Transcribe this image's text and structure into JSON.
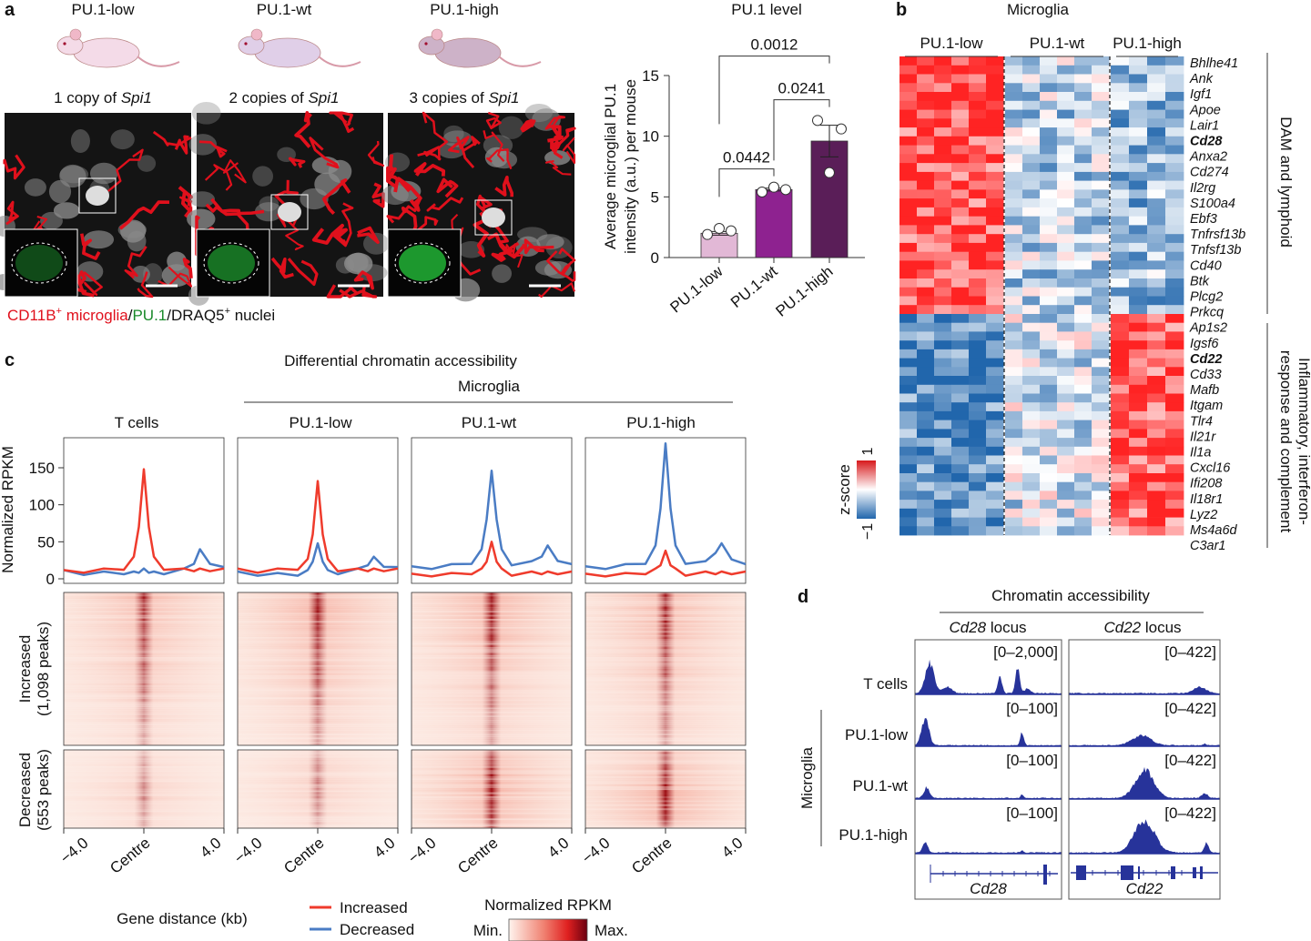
{
  "panel_labels": {
    "a": "a",
    "b": "b",
    "c": "c",
    "d": "d"
  },
  "panel_a": {
    "genotypes": [
      {
        "name": "PU.1-low",
        "copies": "1 copy of ",
        "gene": "Spi1"
      },
      {
        "name": "PU.1-wt",
        "copies": "2 copies of ",
        "gene": "Spi1"
      },
      {
        "name": "PU.1-high",
        "copies": "3 copies of ",
        "gene": "Spi1"
      }
    ],
    "caption": {
      "marker1": "CD11B",
      "sup1": "+",
      "cell1": " microglia",
      "slash1": "/",
      "marker2": "PU.1",
      "slash2": "/DRAQ5",
      "sup2": "+",
      "cell2": " nuclei"
    },
    "colors": {
      "microglia": "#e0101c",
      "pu1": "#1a8a2a",
      "nuclei": "#cfcfcf",
      "mouse_low": "#f4dbe8",
      "mouse_wt": "#e0cfe8",
      "mouse_high": "#cdb2c8"
    }
  },
  "chart_data": [
    {
      "type": "bar",
      "title": "PU.1 level",
      "ylabel_line1": "Average microglial PU.1",
      "ylabel_line2": "intensity (a.u.) per mouse",
      "categories": [
        "PU.1-low",
        "PU.1-wt",
        "PU.1-high"
      ],
      "values": [
        2.0,
        5.6,
        9.6
      ],
      "error_sem": [
        0.15,
        0.12,
        1.3
      ],
      "points": [
        [
          1.9,
          2.4,
          2.2
        ],
        [
          5.4,
          5.8,
          5.6
        ],
        [
          11.3,
          7.0,
          10.6
        ]
      ],
      "colors": [
        "#e2b8d6",
        "#8e2290",
        "#5a1e58"
      ],
      "ylim": [
        0,
        15
      ],
      "yticks": [
        "0",
        "5",
        "10",
        "15"
      ],
      "comparisons": [
        {
          "pair": [
            "PU.1-low",
            "PU.1-wt"
          ],
          "p": "0.0442"
        },
        {
          "pair": [
            "PU.1-wt",
            "PU.1-high"
          ],
          "p": "0.0241"
        },
        {
          "pair": [
            "PU.1-low",
            "PU.1-high"
          ],
          "p": "0.0012"
        }
      ]
    },
    {
      "type": "heatmap",
      "title": "Microglia",
      "groups": [
        "PU.1-low",
        "PU.1-wt",
        "PU.1-high"
      ],
      "gene_sets": [
        {
          "name": "DAM and lymphoid",
          "genes": [
            "Bhlhe41",
            "Ank",
            "Igf1",
            "Apoe",
            "Lair1",
            "Cd28",
            "Anxa2",
            "Cd274",
            "Il2rg",
            "S100a4",
            "Ebf3",
            "Tnfrsf13b",
            "Tnfsf13b",
            "Cd40",
            "Btk",
            "Plcg2",
            "Prkcq"
          ],
          "mean_z": [
            0.8,
            -0.3,
            -0.45
          ]
        },
        {
          "name_line1": "Inflammatory, interferon-",
          "name_line2": "response and complement",
          "genes": [
            "Ap1s2",
            "Igsf6",
            "Cd22",
            "Cd33",
            "Mafb",
            "Itgam",
            "Tlr4",
            "Il21r",
            "Il1a",
            "Cxcl16",
            "Ifi208",
            "Il18r1",
            "Lyz2",
            "Ms4a6d",
            "C3ar1"
          ],
          "mean_z": [
            -0.75,
            -0.2,
            0.75
          ]
        }
      ],
      "bold_genes": [
        "Cd28",
        "Cd22"
      ],
      "colorbar": {
        "label": "z-score",
        "max": "1",
        "min": "−1",
        "colors": [
          "#2166ac",
          "#ffffff",
          "#d7191c"
        ]
      }
    },
    {
      "type": "line",
      "title": "Differential chromatin accessibility",
      "subtitle": "Microglia",
      "ylabel": "Normalized RPKM",
      "xlabel": "Gene distance (kb)",
      "yticks": [
        "0",
        "50",
        "100",
        "150"
      ],
      "ylim": [
        0,
        195
      ],
      "xticks": [
        "−4.0",
        "Centre",
        "4.0"
      ],
      "x": [
        -4,
        -3,
        -2,
        -1,
        -0.5,
        -0.25,
        0,
        0.25,
        0.5,
        1,
        2,
        2.5,
        2.8,
        3.3,
        4
      ],
      "legend": [
        {
          "name": "Increased",
          "color": "#ef3b2c"
        },
        {
          "name": "Decreased",
          "color": "#4a7cc4"
        }
      ],
      "panels": [
        {
          "name": "T cells",
          "increased": [
            10,
            10,
            12,
            14,
            30,
            70,
            148,
            70,
            30,
            14,
            12,
            12,
            12,
            12,
            12
          ],
          "decreased": [
            10,
            7,
            8,
            8,
            8,
            10,
            12,
            10,
            8,
            8,
            12,
            22,
            40,
            22,
            14
          ]
        },
        {
          "name": "PU.1-low",
          "increased": [
            12,
            10,
            12,
            14,
            25,
            60,
            132,
            60,
            25,
            12,
            12,
            12,
            12,
            12,
            12
          ],
          "decreased": [
            8,
            6,
            6,
            6,
            10,
            25,
            48,
            25,
            10,
            8,
            12,
            20,
            28,
            18,
            14
          ]
        },
        {
          "name": "PU.1-wt",
          "increased": [
            5,
            5,
            6,
            8,
            12,
            25,
            50,
            25,
            12,
            6,
            8,
            8,
            8,
            8,
            8
          ],
          "decreased": [
            15,
            15,
            18,
            22,
            40,
            80,
            146,
            80,
            40,
            20,
            22,
            30,
            45,
            26,
            18
          ]
        },
        {
          "name": "PU.1-high",
          "increased": [
            5,
            5,
            6,
            8,
            12,
            20,
            38,
            20,
            12,
            6,
            8,
            8,
            8,
            8,
            8
          ],
          "decreased": [
            15,
            15,
            18,
            22,
            45,
            95,
            183,
            95,
            45,
            22,
            22,
            35,
            48,
            28,
            18
          ]
        }
      ],
      "heatmap_rows": [
        {
          "line1": "Increased",
          "line2": "(1,098 peaks)"
        },
        {
          "line1": "Decreased",
          "line2": "(553 peaks)"
        }
      ],
      "heatmap_colorbar": {
        "label": "Normalized RPKM",
        "min": "Min.",
        "max": "Max.",
        "colors": [
          "#fff4ee",
          "#f08070",
          "#e02020",
          "#6a0010"
        ]
      }
    },
    {
      "type": "area",
      "title": "Chromatin accessibility",
      "group_label": "Microglia",
      "loci": [
        {
          "gene": "Cd28",
          "suffix": " locus"
        },
        {
          "gene": "Cd22",
          "suffix": " locus"
        }
      ],
      "tracks": [
        {
          "name": "T cells",
          "ranges": [
            "[0–2,000]",
            "[0–422]"
          ]
        },
        {
          "name": "PU.1-low",
          "ranges": [
            "[0–100]",
            "[0–422]"
          ]
        },
        {
          "name": "PU.1-wt",
          "ranges": [
            "[0–100]",
            "[0–422]"
          ]
        },
        {
          "name": "PU.1-high",
          "ranges": [
            "[0–100]",
            "[0–422]"
          ]
        }
      ],
      "track_color": "#27339a"
    }
  ]
}
